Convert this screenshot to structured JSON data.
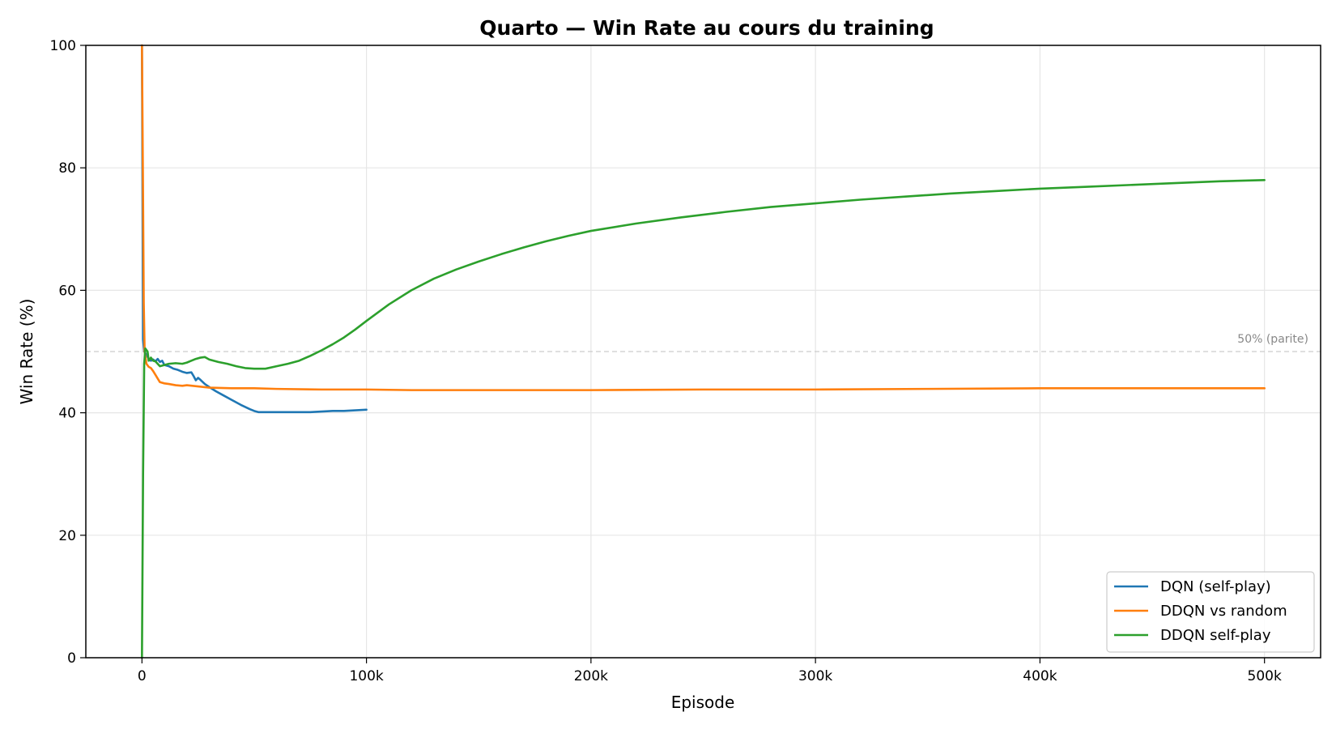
{
  "chart_data": {
    "type": "line",
    "title": "Quarto — Win Rate au cours du training",
    "xlabel": "Episode",
    "ylabel": "Win Rate (%)",
    "xlim": [
      -25000,
      525000
    ],
    "ylim": [
      0,
      100
    ],
    "x_ticks": [
      {
        "value": 0,
        "label": "0"
      },
      {
        "value": 100000,
        "label": "100k"
      },
      {
        "value": 200000,
        "label": "200k"
      },
      {
        "value": 300000,
        "label": "300k"
      },
      {
        "value": 400000,
        "label": "400k"
      },
      {
        "value": 500000,
        "label": "500k"
      }
    ],
    "y_ticks": [
      {
        "value": 0,
        "label": "0"
      },
      {
        "value": 20,
        "label": "20"
      },
      {
        "value": 40,
        "label": "40"
      },
      {
        "value": 60,
        "label": "60"
      },
      {
        "value": 80,
        "label": "80"
      },
      {
        "value": 100,
        "label": "100"
      }
    ],
    "grid": true,
    "legend_position": "bottom-right",
    "reference_line": {
      "y": 50,
      "label": "50% (parite)",
      "color": "#cccccc"
    },
    "series": [
      {
        "name": "DQN (self-play)",
        "color": "#1f77b4",
        "points": [
          [
            0,
            100
          ],
          [
            500,
            52
          ],
          [
            1000,
            50
          ],
          [
            2000,
            49.5
          ],
          [
            3000,
            48.8
          ],
          [
            4000,
            48.5
          ],
          [
            5000,
            48.7
          ],
          [
            6000,
            48.4
          ],
          [
            7000,
            48.8
          ],
          [
            8000,
            48.3
          ],
          [
            9000,
            48.5
          ],
          [
            10000,
            47.8
          ],
          [
            12000,
            47.6
          ],
          [
            14000,
            47.2
          ],
          [
            16000,
            47.0
          ],
          [
            18000,
            46.7
          ],
          [
            20000,
            46.5
          ],
          [
            22000,
            46.6
          ],
          [
            23000,
            46.0
          ],
          [
            24000,
            45.3
          ],
          [
            25000,
            45.7
          ],
          [
            26000,
            45.4
          ],
          [
            28000,
            44.7
          ],
          [
            30000,
            44.2
          ],
          [
            33000,
            43.5
          ],
          [
            36000,
            42.9
          ],
          [
            40000,
            42.1
          ],
          [
            44000,
            41.3
          ],
          [
            48000,
            40.6
          ],
          [
            50000,
            40.3
          ],
          [
            52000,
            40.1
          ],
          [
            55000,
            40.1
          ],
          [
            60000,
            40.1
          ],
          [
            65000,
            40.1
          ],
          [
            70000,
            40.1
          ],
          [
            75000,
            40.1
          ],
          [
            80000,
            40.2
          ],
          [
            85000,
            40.3
          ],
          [
            90000,
            40.3
          ],
          [
            95000,
            40.4
          ],
          [
            100000,
            40.5
          ]
        ]
      },
      {
        "name": "DDQN vs random",
        "color": "#ff7f0e",
        "points": [
          [
            0,
            100
          ],
          [
            400,
            80
          ],
          [
            800,
            58
          ],
          [
            1200,
            50
          ],
          [
            2000,
            48
          ],
          [
            3000,
            47.5
          ],
          [
            4000,
            47.3
          ],
          [
            5000,
            46.8
          ],
          [
            6000,
            46.2
          ],
          [
            7000,
            45.6
          ],
          [
            8000,
            45.0
          ],
          [
            10000,
            44.8
          ],
          [
            12000,
            44.7
          ],
          [
            15000,
            44.5
          ],
          [
            18000,
            44.4
          ],
          [
            20000,
            44.5
          ],
          [
            25000,
            44.3
          ],
          [
            30000,
            44.1
          ],
          [
            40000,
            44.0
          ],
          [
            50000,
            44.0
          ],
          [
            60000,
            43.9
          ],
          [
            80000,
            43.8
          ],
          [
            100000,
            43.8
          ],
          [
            120000,
            43.7
          ],
          [
            150000,
            43.7
          ],
          [
            200000,
            43.7
          ],
          [
            250000,
            43.8
          ],
          [
            300000,
            43.8
          ],
          [
            350000,
            43.9
          ],
          [
            400000,
            44.0
          ],
          [
            450000,
            44.0
          ],
          [
            500000,
            44.0
          ]
        ]
      },
      {
        "name": "DDQN self-play",
        "color": "#2ca02c",
        "points": [
          [
            0,
            0
          ],
          [
            500,
            30
          ],
          [
            1000,
            48
          ],
          [
            1500,
            50.5
          ],
          [
            2500,
            50.0
          ],
          [
            3000,
            48.5
          ],
          [
            4000,
            49.0
          ],
          [
            5000,
            48.5
          ],
          [
            6000,
            48.4
          ],
          [
            7000,
            48.0
          ],
          [
            8000,
            47.6
          ],
          [
            10000,
            47.8
          ],
          [
            12000,
            48.0
          ],
          [
            15000,
            48.1
          ],
          [
            18000,
            48.0
          ],
          [
            20000,
            48.2
          ],
          [
            22000,
            48.5
          ],
          [
            24000,
            48.8
          ],
          [
            26000,
            49.0
          ],
          [
            28000,
            49.1
          ],
          [
            30000,
            48.7
          ],
          [
            34000,
            48.3
          ],
          [
            38000,
            48.0
          ],
          [
            42000,
            47.6
          ],
          [
            46000,
            47.3
          ],
          [
            50000,
            47.2
          ],
          [
            55000,
            47.2
          ],
          [
            60000,
            47.6
          ],
          [
            65000,
            48.0
          ],
          [
            70000,
            48.5
          ],
          [
            75000,
            49.3
          ],
          [
            80000,
            50.2
          ],
          [
            85000,
            51.2
          ],
          [
            90000,
            52.3
          ],
          [
            95000,
            53.6
          ],
          [
            100000,
            55.0
          ],
          [
            110000,
            57.7
          ],
          [
            120000,
            60.0
          ],
          [
            130000,
            61.9
          ],
          [
            140000,
            63.4
          ],
          [
            150000,
            64.7
          ],
          [
            160000,
            65.9
          ],
          [
            170000,
            67.0
          ],
          [
            180000,
            68.0
          ],
          [
            190000,
            68.9
          ],
          [
            200000,
            69.7
          ],
          [
            220000,
            70.9
          ],
          [
            240000,
            71.9
          ],
          [
            260000,
            72.8
          ],
          [
            280000,
            73.6
          ],
          [
            300000,
            74.2
          ],
          [
            320000,
            74.8
          ],
          [
            340000,
            75.3
          ],
          [
            360000,
            75.8
          ],
          [
            380000,
            76.2
          ],
          [
            400000,
            76.6
          ],
          [
            420000,
            76.9
          ],
          [
            440000,
            77.2
          ],
          [
            460000,
            77.5
          ],
          [
            480000,
            77.8
          ],
          [
            500000,
            78.0
          ]
        ]
      }
    ]
  }
}
